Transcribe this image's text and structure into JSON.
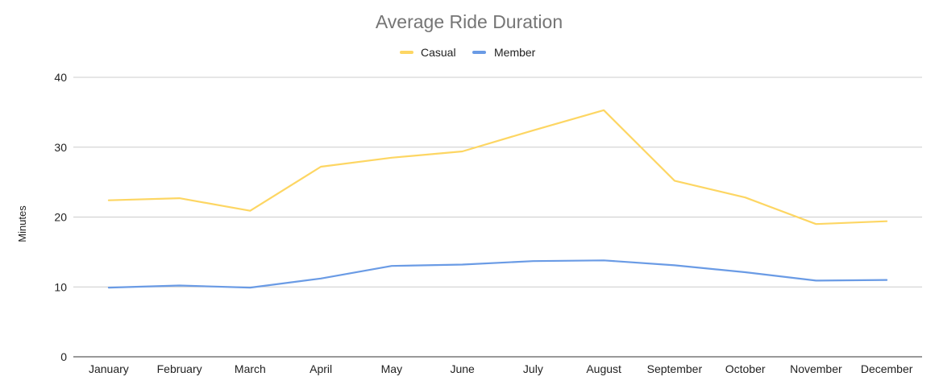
{
  "chart_data": {
    "type": "line",
    "title": "Average Ride Duration",
    "xlabel": "",
    "ylabel": "Minutes",
    "categories": [
      "January",
      "February",
      "March",
      "April",
      "May",
      "June",
      "July",
      "August",
      "September",
      "October",
      "November",
      "December"
    ],
    "series": [
      {
        "name": "Casual",
        "color": "#fdd663",
        "values": [
          22.4,
          22.7,
          20.9,
          27.2,
          28.5,
          29.4,
          32.4,
          35.3,
          25.2,
          22.8,
          19.0,
          19.4
        ]
      },
      {
        "name": "Member",
        "color": "#6a9be5",
        "values": [
          9.9,
          10.2,
          9.9,
          11.2,
          13.0,
          13.2,
          13.7,
          13.8,
          13.1,
          12.1,
          10.9,
          11.0
        ]
      }
    ],
    "ylim": [
      0,
      40
    ],
    "yticks": [
      "0",
      "10",
      "20",
      "30",
      "40"
    ],
    "grid": true,
    "legend_position": "top"
  }
}
